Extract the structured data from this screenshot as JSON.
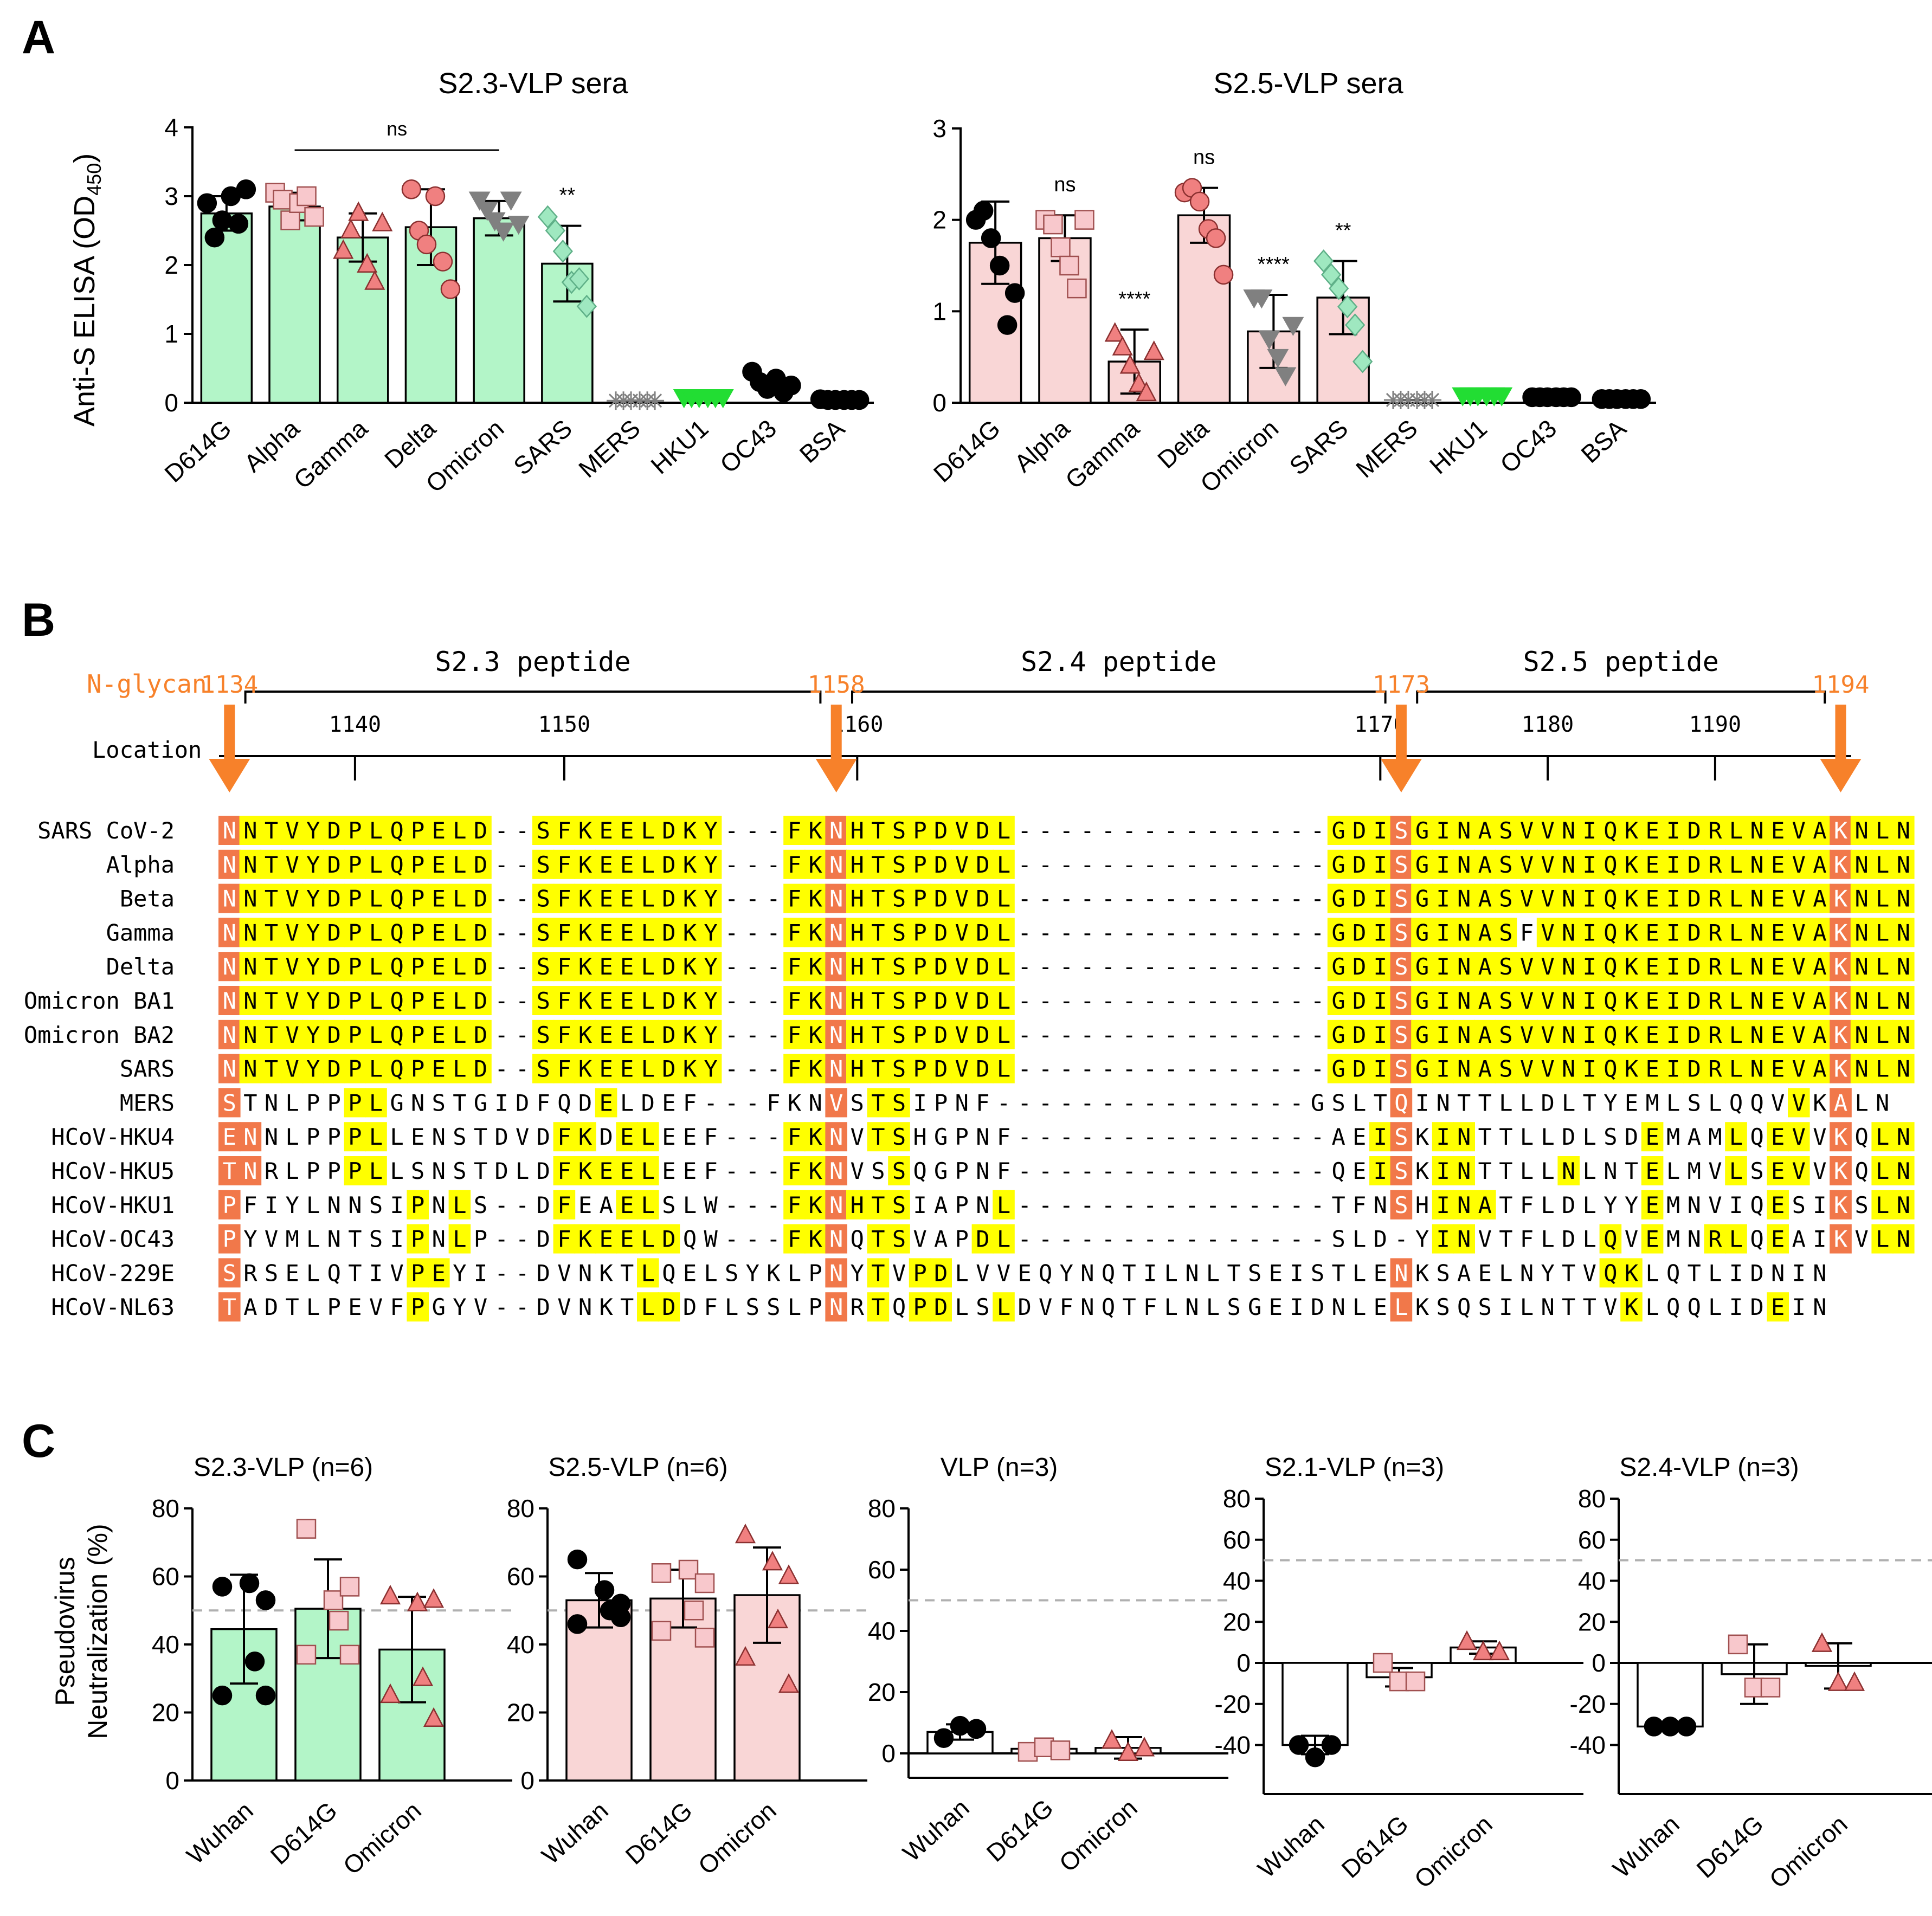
{
  "panels": {
    "A": "A",
    "B": "B",
    "C": "C"
  },
  "panel_a": {
    "ylabel": "Anti-S ELISA (OD",
    "ylabel_sub": "450",
    "ylabel_end": ")",
    "ylabel_full": "Anti-S ELISA (OD450)"
  },
  "panel_c": {
    "ylabel_line1": "Pseudovirus",
    "ylabel_line2": "Neutralization (%)"
  },
  "colors": {
    "green": "#b3f5c8",
    "pink": "#f9d6d6",
    "grey": "#808080",
    "bright_green": "#22dd33",
    "salmon": "#f08080",
    "light_pink": "#f8c8cc",
    "mint": "#9fe8c0",
    "yellow": "#ffff00",
    "orange": "#f7812a",
    "n_orange": "#f1784a"
  },
  "chart_data": [
    {
      "type": "bar",
      "title": "S2.3-VLP sera",
      "categories": [
        "D614G",
        "Alpha",
        "Gamma",
        "Delta",
        "Omicron",
        "SARS",
        "MERS",
        "HKU1",
        "OC43",
        "BSA"
      ],
      "values": [
        2.75,
        2.85,
        2.4,
        2.55,
        2.68,
        2.02,
        0.03,
        0.08,
        0.27,
        0.04
      ],
      "errors": [
        0.25,
        0.2,
        0.35,
        0.55,
        0.25,
        0.55,
        0,
        0,
        0,
        0
      ],
      "points": [
        [
          2.9,
          2.4,
          2.65,
          3.0,
          2.6,
          3.1
        ],
        [
          3.05,
          2.95,
          2.65,
          2.9,
          3.0,
          2.7
        ],
        [
          2.2,
          2.5,
          2.75,
          2.0,
          1.75,
          2.6
        ],
        [
          3.1,
          2.5,
          2.3,
          3.0,
          2.05,
          1.65
        ],
        [
          2.95,
          2.8,
          2.65,
          2.5,
          2.95,
          2.6
        ],
        [
          2.7,
          2.5,
          2.2,
          1.75,
          1.8,
          1.4
        ],
        [
          0.03,
          0.03,
          0.03,
          0.03,
          0.03,
          0.03
        ],
        [
          0.08,
          0.08,
          0.08,
          0.08,
          0.08,
          0.08
        ],
        [
          0.45,
          0.3,
          0.2,
          0.35,
          0.15,
          0.25
        ],
        [
          0.05,
          0.04,
          0.04,
          0.04,
          0.04,
          0.04
        ]
      ],
      "ylim": [
        0,
        4
      ],
      "yticks": [
        0,
        1,
        2,
        3,
        4
      ],
      "xlabel": "",
      "annotations": [
        {
          "category": "SARS",
          "text": "**"
        },
        {
          "bracket": [
            "Alpha",
            "Omicron"
          ],
          "text": "ns"
        }
      ]
    },
    {
      "type": "bar",
      "title": "S2.5-VLP sera",
      "categories": [
        "D614G",
        "Alpha",
        "Gamma",
        "Delta",
        "Omicron",
        "SARS",
        "MERS",
        "HKU1",
        "OC43",
        "BSA"
      ],
      "values": [
        1.75,
        1.8,
        0.45,
        2.05,
        0.78,
        1.15,
        0.03,
        0.08,
        0.06,
        0.04
      ],
      "errors": [
        0.45,
        0.25,
        0.35,
        0.3,
        0.4,
        0.4,
        0,
        0,
        0,
        0
      ],
      "points": [
        [
          2.0,
          2.1,
          1.8,
          1.5,
          0.85,
          1.2
        ],
        [
          2.0,
          1.95,
          1.7,
          1.5,
          1.25,
          2.0
        ],
        [
          0.75,
          0.6,
          0.4,
          0.2,
          0.1,
          0.55
        ],
        [
          2.3,
          2.35,
          2.2,
          1.9,
          1.8,
          1.4
        ],
        [
          1.15,
          1.15,
          0.7,
          0.5,
          0.3,
          0.85
        ],
        [
          1.55,
          1.4,
          1.25,
          1.05,
          0.85,
          0.45
        ],
        [
          0.03,
          0.03,
          0.03,
          0.03,
          0.03,
          0.03
        ],
        [
          0.08,
          0.08,
          0.08,
          0.08,
          0.08,
          0.08
        ],
        [
          0.06,
          0.06,
          0.06,
          0.06,
          0.06,
          0.06
        ],
        [
          0.04,
          0.04,
          0.04,
          0.04,
          0.04,
          0.04
        ]
      ],
      "ylim": [
        0,
        3
      ],
      "yticks": [
        0,
        1,
        2,
        3
      ],
      "xlabel": "",
      "annotations": [
        {
          "category": "Alpha",
          "text": "ns"
        },
        {
          "category": "Gamma",
          "text": "****"
        },
        {
          "category": "Delta",
          "text": "ns"
        },
        {
          "category": "Omicron",
          "text": "****"
        },
        {
          "category": "SARS",
          "text": "**"
        }
      ]
    },
    {
      "type": "bar",
      "title": "S2.3-VLP (n=6)",
      "categories": [
        "Wuhan",
        "D614G",
        "Omicron"
      ],
      "values": [
        44.5,
        50.5,
        38.5
      ],
      "errors": [
        16,
        14.5,
        15.5
      ],
      "points": [
        [
          57,
          58,
          53,
          35,
          25,
          25
        ],
        [
          74,
          53,
          57,
          47,
          37,
          37
        ],
        [
          54,
          52,
          53,
          30,
          25,
          18
        ]
      ],
      "ylim": [
        0,
        80
      ],
      "yticks": [
        0,
        20,
        40,
        60,
        80
      ],
      "reference_line": 50
    },
    {
      "type": "bar",
      "title": "S2.5-VLP (n=6)",
      "categories": [
        "Wuhan",
        "D614G",
        "Omicron"
      ],
      "values": [
        53,
        53.5,
        54.5
      ],
      "errors": [
        8,
        8.5,
        14
      ],
      "points": [
        [
          65,
          56,
          52,
          50,
          46,
          48
        ],
        [
          61,
          62,
          58,
          50,
          44,
          42
        ],
        [
          72,
          64,
          60,
          47,
          36,
          28
        ]
      ],
      "ylim": [
        0,
        80
      ],
      "yticks": [
        0,
        20,
        40,
        60,
        80
      ],
      "reference_line": 50
    },
    {
      "type": "bar",
      "title": "VLP (n=3)",
      "categories": [
        "Wuhan",
        "D614G",
        "Omicron"
      ],
      "values": [
        7,
        1.5,
        1.8
      ],
      "errors": [
        2.5,
        0.8,
        3.5
      ],
      "points": [
        [
          5,
          9,
          8
        ],
        [
          0.5,
          2,
          1
        ],
        [
          4,
          0,
          1.5
        ]
      ],
      "ylim": [
        -10,
        80
      ],
      "yticks": [
        0,
        20,
        40,
        60,
        80
      ],
      "reference_line": 50
    },
    {
      "type": "bar",
      "title": "S2.1-VLP (n=3)",
      "categories": [
        "Wuhan",
        "D614G",
        "Omicron"
      ],
      "values": [
        -40,
        -7,
        7.5
      ],
      "errors": [
        4.5,
        4.5,
        3
      ],
      "points": [
        [
          -40,
          -46,
          -40
        ],
        [
          0,
          -9,
          -9
        ],
        [
          10,
          5,
          5
        ]
      ],
      "ylim": [
        -50,
        80
      ],
      "yticks": [
        -40,
        -20,
        0,
        20,
        40,
        60,
        80
      ],
      "reference_line": 50
    },
    {
      "type": "bar",
      "title": "S2.4-VLP (n=3)",
      "categories": [
        "Wuhan",
        "D614G",
        "Omicron"
      ],
      "values": [
        -31,
        -5.5,
        -1.5
      ],
      "errors": [
        0,
        14.5,
        11
      ],
      "points": [
        [
          -31,
          -31,
          -31
        ],
        [
          9,
          -12,
          -12
        ],
        [
          9,
          -10,
          -10
        ]
      ],
      "ylim": [
        -50,
        80
      ],
      "yticks": [
        -40,
        -20,
        0,
        20,
        40,
        60,
        80
      ],
      "reference_line": 50
    }
  ],
  "alignment": {
    "nglycan_label": "N-glycan",
    "location_label": "Location",
    "glycans": [
      "1134",
      "1158",
      "1173",
      "1194"
    ],
    "peptides": [
      "S2.3 peptide",
      "S2.4 peptide",
      "S2.5 peptide"
    ],
    "ticks": [
      "1140",
      "1150",
      "1160",
      "1170",
      "1180",
      "1190"
    ],
    "rows": [
      {
        "name": "SARS CoV-2",
        "seq": "NNTVYDPLQPELD--SFKEELDKY---FKNHTSPDVDL---------------GDISGINASVVNIQKEIDRLNEVAKNLN"
      },
      {
        "name": "Alpha",
        "seq": "NNTVYDPLQPELD--SFKEELDKY---FKNHTSPDVDL---------------GDISGINASVVNIQKEIDRLNEVAKNLN"
      },
      {
        "name": "Beta",
        "seq": "NNTVYDPLQPELD--SFKEELDKY---FKNHTSPDVDL---------------GDISGINASVVNIQKEIDRLNEVAKNLN"
      },
      {
        "name": "Gamma",
        "seq": "NNTVYDPLQPELD--SFKEELDKY---FKNHTSPDVDL---------------GDISGINASFVNIQKEIDRLNEVAKNLN"
      },
      {
        "name": "Delta",
        "seq": "NNTVYDPLQPELD--SFKEELDKY---FKNHTSPDVDL---------------GDISGINASVVNIQKEIDRLNEVAKNLN"
      },
      {
        "name": "Omicron BA1",
        "seq": "NNTVYDPLQPELD--SFKEELDKY---FKNHTSPDVDL---------------GDISGINASVVNIQKEIDRLNEVAKNLN"
      },
      {
        "name": "Omicron BA2",
        "seq": "NNTVYDPLQPELD--SFKEELDKY---FKNHTSPDVDL---------------GDISGINASVVNIQKEIDRLNEVAKNLN"
      },
      {
        "name": "SARS",
        "seq": "NNTVYDPLQPELD--SFKEELDKY---FKNHTSPDVDL---------------GDISGINASVVNIQKEIDRLNEVAKNLN"
      },
      {
        "name": "MERS",
        "seq": "STNLPPPLGNSTGIDFQDELDEF---FKNVSTSIPNF---------------GSLTQINTTLLDLTYEMLSLQQVVKALN"
      },
      {
        "name": "HCoV-HKU4",
        "seq": "ENNLPPPLLENSTDVDFKDELEEF---FKNVTSHGPNF---------------AEISKINTTLLDLSDEMAMLQEVVKQLN"
      },
      {
        "name": "HCoV-HKU5",
        "seq": "TNRLPPPLLSNSTDLDFKEELEEF---FKNVSSQGPNF---------------QEISKINTTLLNLNTELMVLSEVVKQLN"
      },
      {
        "name": "HCoV-HKU1",
        "seq": "PFIYLNNSIPNLS--DFEAELSLW---FKNHTSIAPNL---------------TFNSHINATFLDLYYEMNVIQESIKSLN"
      },
      {
        "name": "HCoV-OC43",
        "seq": "PYVMLNTSIPNLP--DFKEELDQW---FKNQTSVAPDL---------------SLD-YINVTFLDLQVEMNRLQEAIKVLN"
      },
      {
        "name": "HCoV-229E",
        "seq": "SRSELQTIVPEYI--DVNKTLQELSYKLPNYTVPDLVVEQYNQTILNLTSEISTLENKSAELNYTVQKLQTLIDNIN"
      },
      {
        "name": "HCoV-NL63",
        "seq": "TADTLPEVFPGYV--DVNKTLDDFLSSLPNRTQPDLSLDVFNQTFLNLSGEIDNLELKSQSILNTTVKLQQLIDEIN"
      }
    ]
  }
}
